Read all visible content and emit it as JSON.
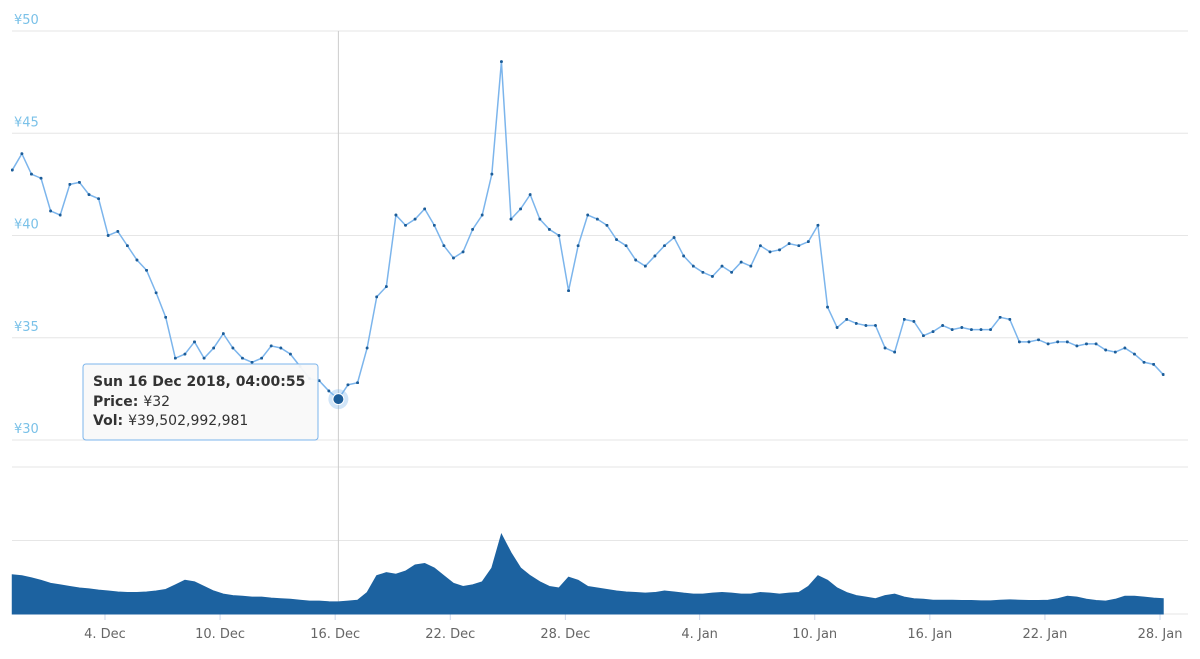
{
  "chart_data": {
    "type": "line",
    "x": [
      "2018-11-29T04:00",
      "2018-11-29T16:00",
      "2018-11-30T04:00",
      "2018-11-30T16:00",
      "2018-12-01T04:00",
      "2018-12-01T16:00",
      "2018-12-02T04:00",
      "2018-12-02T16:00",
      "2018-12-03T04:00",
      "2018-12-03T16:00",
      "2018-12-04T04:00",
      "2018-12-04T16:00",
      "2018-12-05T04:00",
      "2018-12-05T16:00",
      "2018-12-06T04:00",
      "2018-12-06T16:00",
      "2018-12-07T04:00",
      "2018-12-07T16:00",
      "2018-12-08T04:00",
      "2018-12-08T16:00",
      "2018-12-09T04:00",
      "2018-12-09T16:00",
      "2018-12-10T04:00",
      "2018-12-10T16:00",
      "2018-12-11T04:00",
      "2018-12-11T16:00",
      "2018-12-12T04:00",
      "2018-12-12T16:00",
      "2018-12-13T04:00",
      "2018-12-13T16:00",
      "2018-12-14T04:00",
      "2018-12-14T16:00",
      "2018-12-15T04:00",
      "2018-12-15T16:00",
      "2018-12-16T04:00:55",
      "2018-12-16T16:00",
      "2018-12-17T04:00",
      "2018-12-17T16:00",
      "2018-12-18T04:00",
      "2018-12-18T16:00",
      "2018-12-19T04:00",
      "2018-12-19T16:00",
      "2018-12-20T04:00",
      "2018-12-20T16:00",
      "2018-12-21T04:00",
      "2018-12-21T16:00",
      "2018-12-22T04:00",
      "2018-12-22T16:00",
      "2018-12-23T04:00",
      "2018-12-23T16:00",
      "2018-12-24T04:00",
      "2018-12-24T16:00",
      "2018-12-25T04:00",
      "2018-12-25T16:00",
      "2018-12-26T04:00",
      "2018-12-26T16:00",
      "2018-12-27T04:00",
      "2018-12-27T16:00",
      "2018-12-28T04:00",
      "2018-12-28T16:00",
      "2018-12-29T04:00",
      "2018-12-29T16:00",
      "2018-12-30T04:00",
      "2018-12-30T16:00",
      "2018-12-31T04:00",
      "2018-12-31T16:00",
      "2019-01-01T04:00",
      "2019-01-01T16:00",
      "2019-01-02T04:00",
      "2019-01-02T16:00",
      "2019-01-03T04:00",
      "2019-01-03T16:00",
      "2019-01-04T04:00",
      "2019-01-04T16:00",
      "2019-01-05T04:00",
      "2019-01-05T16:00",
      "2019-01-06T04:00",
      "2019-01-06T16:00",
      "2019-01-07T04:00",
      "2019-01-07T16:00",
      "2019-01-08T04:00",
      "2019-01-08T16:00",
      "2019-01-09T04:00",
      "2019-01-09T16:00",
      "2019-01-10T04:00",
      "2019-01-10T16:00",
      "2019-01-11T04:00",
      "2019-01-11T16:00",
      "2019-01-12T04:00",
      "2019-01-12T16:00",
      "2019-01-13T04:00",
      "2019-01-13T16:00",
      "2019-01-14T04:00",
      "2019-01-14T16:00",
      "2019-01-15T04:00",
      "2019-01-15T16:00",
      "2019-01-16T04:00",
      "2019-01-16T16:00",
      "2019-01-17T04:00",
      "2019-01-17T16:00",
      "2019-01-18T04:00",
      "2019-01-18T16:00",
      "2019-01-19T04:00",
      "2019-01-19T16:00",
      "2019-01-20T04:00",
      "2019-01-20T16:00",
      "2019-01-21T04:00",
      "2019-01-21T16:00",
      "2019-01-22T04:00",
      "2019-01-22T16:00",
      "2019-01-23T04:00",
      "2019-01-23T16:00",
      "2019-01-24T04:00",
      "2019-01-24T16:00",
      "2019-01-25T04:00",
      "2019-01-25T16:00",
      "2019-01-26T04:00",
      "2019-01-26T16:00",
      "2019-01-27T04:00",
      "2019-01-27T16:00",
      "2019-01-28T04:00"
    ],
    "xlim": [
      "2018-11-29T03:40",
      "2019-01-29T11:00"
    ],
    "xticks": [
      {
        "value": "2018-12-04",
        "label": "4. Dec"
      },
      {
        "value": "2018-12-10",
        "label": "10. Dec"
      },
      {
        "value": "2018-12-16",
        "label": "16. Dec"
      },
      {
        "value": "2018-12-22",
        "label": "22. Dec"
      },
      {
        "value": "2018-12-28",
        "label": "28. Dec"
      },
      {
        "value": "2019-01-04",
        "label": "4. Jan"
      },
      {
        "value": "2019-01-10",
        "label": "10. Jan"
      },
      {
        "value": "2019-01-16",
        "label": "16. Jan"
      },
      {
        "value": "2019-01-22",
        "label": "22. Jan"
      },
      {
        "value": "2019-01-28",
        "label": "28. Jan"
      }
    ],
    "ylim": [
      30,
      50
    ],
    "yticks": [
      {
        "value": 30,
        "label": "¥30"
      },
      {
        "value": 35,
        "label": "¥35"
      },
      {
        "value": 40,
        "label": "¥40"
      },
      {
        "value": 45,
        "label": "¥45"
      },
      {
        "value": 50,
        "label": "¥50"
      }
    ],
    "y2lim": [
      0,
      480000000000.0
    ],
    "y2ticks": [
      0,
      240000000000.0,
      480000000000.0
    ],
    "grid": true,
    "series": [
      {
        "color": "#7cb5ec",
        "marker_color": "#1c5d99",
        "values": [
          43.2,
          44,
          43,
          42.8,
          41.2,
          41,
          42.5,
          42.6,
          42,
          41.8,
          40,
          40.2,
          39.5,
          38.8,
          38.3,
          37.2,
          36,
          34,
          34.2,
          34.8,
          34,
          34.5,
          35.2,
          34.5,
          34,
          33.8,
          34,
          34.6,
          34.5,
          34.2,
          33.6,
          33,
          32.9,
          32.4,
          32,
          32.7,
          32.8,
          34.5,
          37,
          37.5,
          41,
          40.5,
          40.8,
          41.3,
          40.5,
          39.5,
          38.9,
          39.2,
          40.3,
          41,
          43,
          48.5,
          40.8,
          41.3,
          42,
          40.8,
          40.3,
          40,
          37.3,
          39.5,
          41,
          40.8,
          40.5,
          39.8,
          39.5,
          38.8,
          38.5,
          39,
          39.5,
          39.9,
          39,
          38.5,
          38.2,
          38,
          38.5,
          38.2,
          38.7,
          38.5,
          39.5,
          39.2,
          39.3,
          39.6,
          39.5,
          39.7,
          40.5,
          36.5,
          35.5,
          35.9,
          35.7,
          35.6,
          35.6,
          34.5,
          34.3,
          35.9,
          35.8,
          35.1,
          35.3,
          35.6,
          35.4,
          35.5,
          35.4,
          35.4,
          35.4,
          36,
          35.9,
          34.8,
          34.8,
          34.9,
          34.7,
          34.8,
          34.8,
          34.6,
          34.7,
          34.7,
          34.4,
          34.3,
          34.5,
          34.2,
          33.8,
          33.7,
          33.2
        ]
      },
      {
        "type": "area",
        "axis": "y2",
        "color": "#1c62a0",
        "values": [
          128000000000.0,
          125000000000.0,
          118000000000.0,
          110000000000.0,
          100000000000.0,
          95000000000.0,
          90000000000.0,
          85000000000.0,
          82000000000.0,
          78000000000.0,
          75000000000.0,
          72000000000.0,
          70000000000.0,
          70000000000.0,
          72000000000.0,
          75000000000.0,
          80000000000.0,
          95000000000.0,
          110000000000.0,
          105000000000.0,
          90000000000.0,
          75000000000.0,
          65000000000.0,
          60000000000.0,
          58000000000.0,
          55000000000.0,
          55000000000.0,
          52000000000.0,
          50000000000.0,
          48000000000.0,
          45000000000.0,
          42000000000.0,
          42000000000.0,
          40000000000.0,
          39502992981,
          42000000000.0,
          45000000000.0,
          70000000000.0,
          125000000000.0,
          135000000000.0,
          130000000000.0,
          140000000000.0,
          160000000000.0,
          165000000000.0,
          150000000000.0,
          125000000000.0,
          100000000000.0,
          90000000000.0,
          95000000000.0,
          105000000000.0,
          150000000000.0,
          260000000000.0,
          200000000000.0,
          150000000000.0,
          125000000000.0,
          105000000000.0,
          90000000000.0,
          85000000000.0,
          120000000000.0,
          110000000000.0,
          90000000000.0,
          85000000000.0,
          80000000000.0,
          75000000000.0,
          72000000000.0,
          70000000000.0,
          68000000000.0,
          70000000000.0,
          75000000000.0,
          72000000000.0,
          68000000000.0,
          65000000000.0,
          65000000000.0,
          68000000000.0,
          70000000000.0,
          68000000000.0,
          65000000000.0,
          65000000000.0,
          70000000000.0,
          68000000000.0,
          65000000000.0,
          68000000000.0,
          70000000000.0,
          90000000000.0,
          125000000000.0,
          110000000000.0,
          85000000000.0,
          70000000000.0,
          60000000000.0,
          55000000000.0,
          50000000000.0,
          60000000000.0,
          65000000000.0,
          55000000000.0,
          50000000000.0,
          48000000000.0,
          45000000000.0,
          45000000000.0,
          45000000000.0,
          44000000000.0,
          44000000000.0,
          43000000000.0,
          43000000000.0,
          45000000000.0,
          46000000000.0,
          45000000000.0,
          44000000000.0,
          44000000000.0,
          45000000000.0,
          50000000000.0,
          58000000000.0,
          55000000000.0,
          48000000000.0,
          44000000000.0,
          42000000000.0,
          48000000000.0,
          58000000000.0,
          58000000000.0,
          55000000000.0,
          52000000000.0,
          50000000000.0
        ]
      }
    ],
    "tooltip": {
      "x": "2018-12-16T04:00:55",
      "title": "Sun 16 Dec 2018, 04:00:55",
      "rows": [
        {
          "label": "Price:",
          "value": 32,
          "value_label": "¥32"
        },
        {
          "label": "Vol:",
          "value": 39502992981,
          "value_label": "¥39,502,992,981"
        }
      ]
    }
  }
}
